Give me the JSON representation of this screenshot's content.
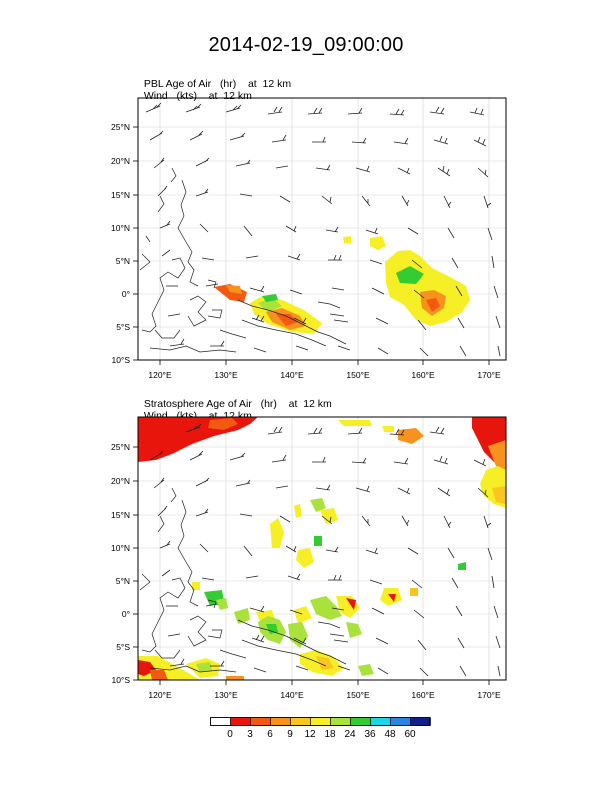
{
  "title": "2014-02-19_09:00:00",
  "panels": [
    {
      "line1_label": "PBL Age of Air",
      "line1_units": "(hr)",
      "line1_level": "at  12 km",
      "line2_label": "Wind",
      "line2_units": "(kts)",
      "line2_level": "at  12 km"
    },
    {
      "line1_label": "Stratosphere Age of Air",
      "line1_units": "(hr)",
      "line1_level": "at  12 km",
      "line2_label": "Wind",
      "line2_units": "(kts)",
      "line2_level": "at  12 km"
    }
  ],
  "axes": {
    "lon_labels": [
      "120°E",
      "130°E",
      "140°E",
      "150°E",
      "160°E",
      "170°E"
    ],
    "lat_labels": [
      "25°N",
      "20°N",
      "15°N",
      "10°N",
      "5°N",
      "0°",
      "5°S",
      "10°S"
    ]
  },
  "colorbar": {
    "labels": [
      "0",
      "3",
      "6",
      "9",
      "12",
      "18",
      "24",
      "36",
      "48",
      "60"
    ],
    "colors": [
      "#ffffff",
      "#e8150c",
      "#f25a12",
      "#f7921c",
      "#fbc51f",
      "#f6ef26",
      "#a8e23a",
      "#33cc33",
      "#1dd5e6",
      "#2a86e6",
      "#111f8a"
    ]
  }
}
